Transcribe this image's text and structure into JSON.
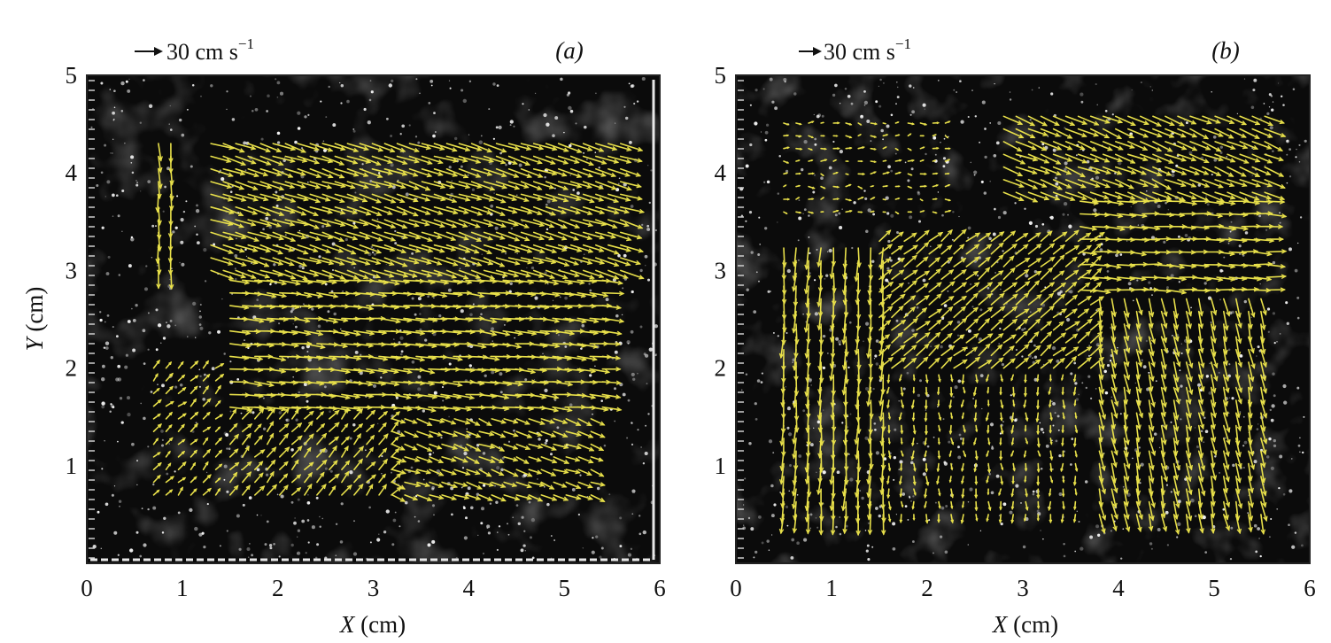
{
  "figure": {
    "panels": [
      {
        "panel_label": "(a)",
        "scale_text": "30 cm s",
        "scale_exp": "−1",
        "scale_ref_speed": 30
      },
      {
        "panel_label": "(b)",
        "scale_text": "30 cm s",
        "scale_exp": "−1",
        "scale_ref_speed": 30
      }
    ]
  },
  "chart_data": [
    {
      "type": "vector-field",
      "panel": "(a)",
      "title": "",
      "xlabel_var": "X",
      "xlabel_unit": " (cm)",
      "ylabel_var": "Y",
      "ylabel_unit": " (cm)",
      "xlim": [
        0,
        6
      ],
      "ylim": [
        0,
        5
      ],
      "xticks": [
        "0",
        "1",
        "2",
        "3",
        "4",
        "5",
        "6"
      ],
      "yticks": [
        "1",
        "2",
        "3",
        "4",
        "5"
      ],
      "x_tick_values": [
        0,
        1,
        2,
        3,
        4,
        5,
        6
      ],
      "y_tick_values": [
        1,
        2,
        3,
        4,
        5
      ],
      "vector_color": "#e8e04a",
      "background": "dark particle image",
      "field_regions": [
        {
          "name": "left-strip-downflow",
          "x": [
            0.75,
            1.0
          ],
          "y": [
            3.0,
            4.4
          ],
          "u": 1,
          "v": -18
        },
        {
          "name": "upper-rightward-descending",
          "x": [
            1.3,
            5.6
          ],
          "y": [
            3.0,
            4.4
          ],
          "u": 22,
          "v": -7
        },
        {
          "name": "middle-rightward",
          "x": [
            1.5,
            5.4
          ],
          "y": [
            1.6,
            3.0
          ],
          "u": 20,
          "v": -2
        },
        {
          "name": "lower-left-vortical",
          "x": [
            0.7,
            1.4
          ],
          "y": [
            0.7,
            2.0
          ],
          "u": 6,
          "v": 6
        },
        {
          "name": "lower-diagonal-upward",
          "x": [
            1.5,
            3.2
          ],
          "y": [
            0.7,
            1.6
          ],
          "u": 8,
          "v": 9
        },
        {
          "name": "lower-right-descending",
          "x": [
            3.2,
            5.4
          ],
          "y": [
            0.7,
            1.6
          ],
          "u": 14,
          "v": -5
        }
      ]
    },
    {
      "type": "vector-field",
      "panel": "(b)",
      "title": "",
      "xlabel_var": "X",
      "xlabel_unit": " (cm)",
      "ylabel_var": "",
      "ylabel_unit": "",
      "xlim": [
        0,
        6
      ],
      "ylim": [
        0,
        5
      ],
      "xticks": [
        "0",
        "1",
        "2",
        "3",
        "4",
        "5",
        "6"
      ],
      "yticks": [
        "1",
        "2",
        "3",
        "4",
        "5"
      ],
      "x_tick_values": [
        0,
        1,
        2,
        3,
        4,
        5,
        6
      ],
      "y_tick_values": [
        1,
        2,
        3,
        4,
        5
      ],
      "vector_color": "#e8e04a",
      "background": "dark particle image",
      "field_regions": [
        {
          "name": "top-left-weak",
          "x": [
            0.5,
            2.2
          ],
          "y": [
            3.6,
            4.6
          ],
          "u": 4,
          "v": 0
        },
        {
          "name": "top-right-rightward-descending",
          "x": [
            2.8,
            5.6
          ],
          "y": [
            3.8,
            4.6
          ],
          "u": 20,
          "v": -8
        },
        {
          "name": "upper-right-rightward",
          "x": [
            3.6,
            5.6
          ],
          "y": [
            2.8,
            3.8
          ],
          "u": 18,
          "v": -1
        },
        {
          "name": "middle-diagonal-upward",
          "x": [
            1.5,
            3.8
          ],
          "y": [
            2.0,
            3.3
          ],
          "u": 12,
          "v": 10
        },
        {
          "name": "left-downflow",
          "x": [
            0.5,
            1.6
          ],
          "y": [
            0.5,
            3.3
          ],
          "u": -1,
          "v": -20
        },
        {
          "name": "center-bottom-weak",
          "x": [
            1.6,
            3.6
          ],
          "y": [
            0.5,
            2.0
          ],
          "u": 0,
          "v": -7
        },
        {
          "name": "right-curving-downflow",
          "x": [
            3.8,
            5.6
          ],
          "y": [
            0.5,
            2.8
          ],
          "u": 4,
          "v": -18
        }
      ]
    }
  ]
}
